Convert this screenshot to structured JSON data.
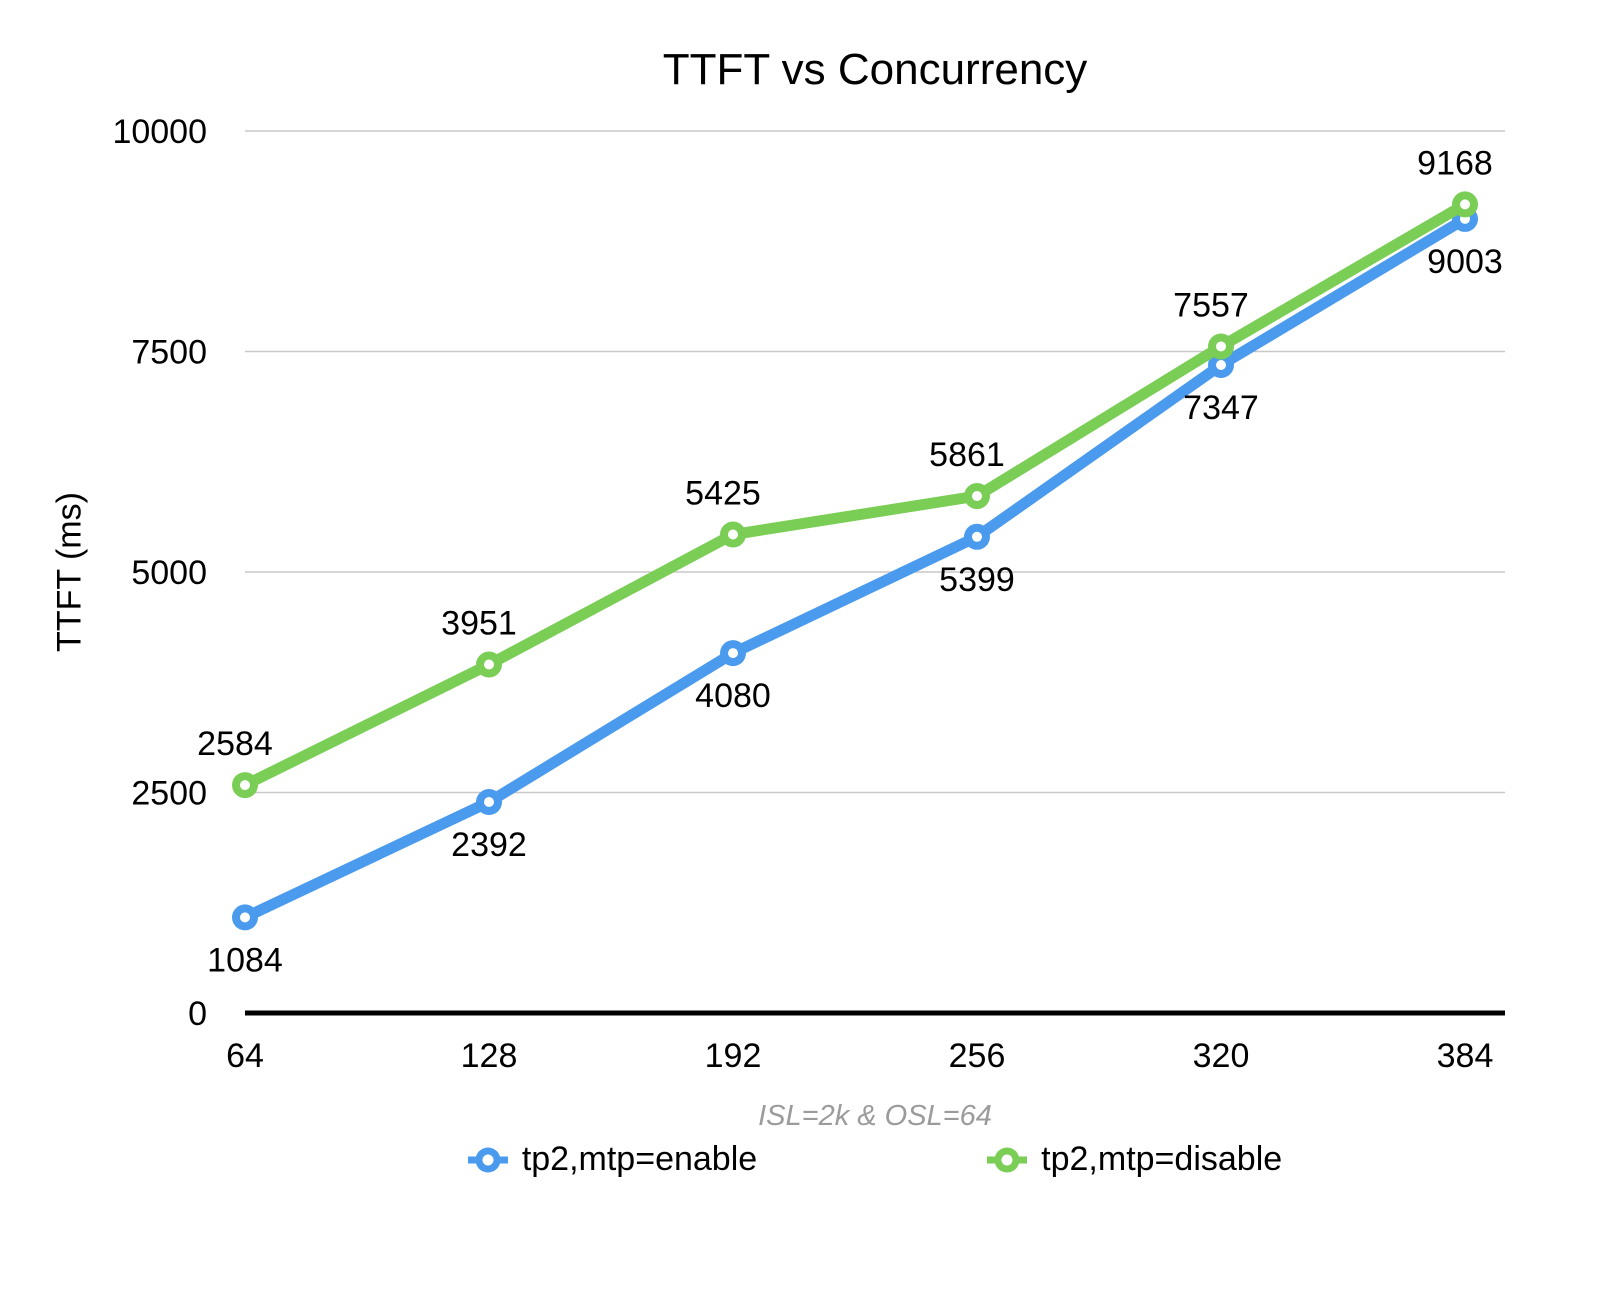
{
  "chart_data": {
    "type": "line",
    "title": "TTFT vs Concurrency",
    "xlabel": "",
    "ylabel": "TTFT (ms)",
    "caption": "ISL=2k & OSL=64",
    "categories": [
      "64",
      "128",
      "192",
      "256",
      "320",
      "384"
    ],
    "series": [
      {
        "name": "tp2,mtp=enable",
        "color": "#4A9AEE",
        "marker": "ring-circle",
        "label_placement": "below",
        "values": [
          1084,
          2392,
          4080,
          5399,
          7347,
          9003
        ]
      },
      {
        "name": "tp2,mtp=disable",
        "color": "#7BCE55",
        "marker": "ring-circle",
        "label_placement": "above",
        "values": [
          2584,
          3951,
          5425,
          5861,
          7557,
          9168
        ]
      }
    ],
    "ylim": [
      0,
      10000
    ],
    "yticks": [
      0,
      2500,
      5000,
      7500,
      10000
    ],
    "grid": true,
    "legend_position": "bottom",
    "colors": {
      "gridline": "#c8c8c8",
      "axis_line": "#000000",
      "label_text": "#000000",
      "caption_text": "#9b9b9b",
      "marker_center": "#ffffff"
    }
  }
}
